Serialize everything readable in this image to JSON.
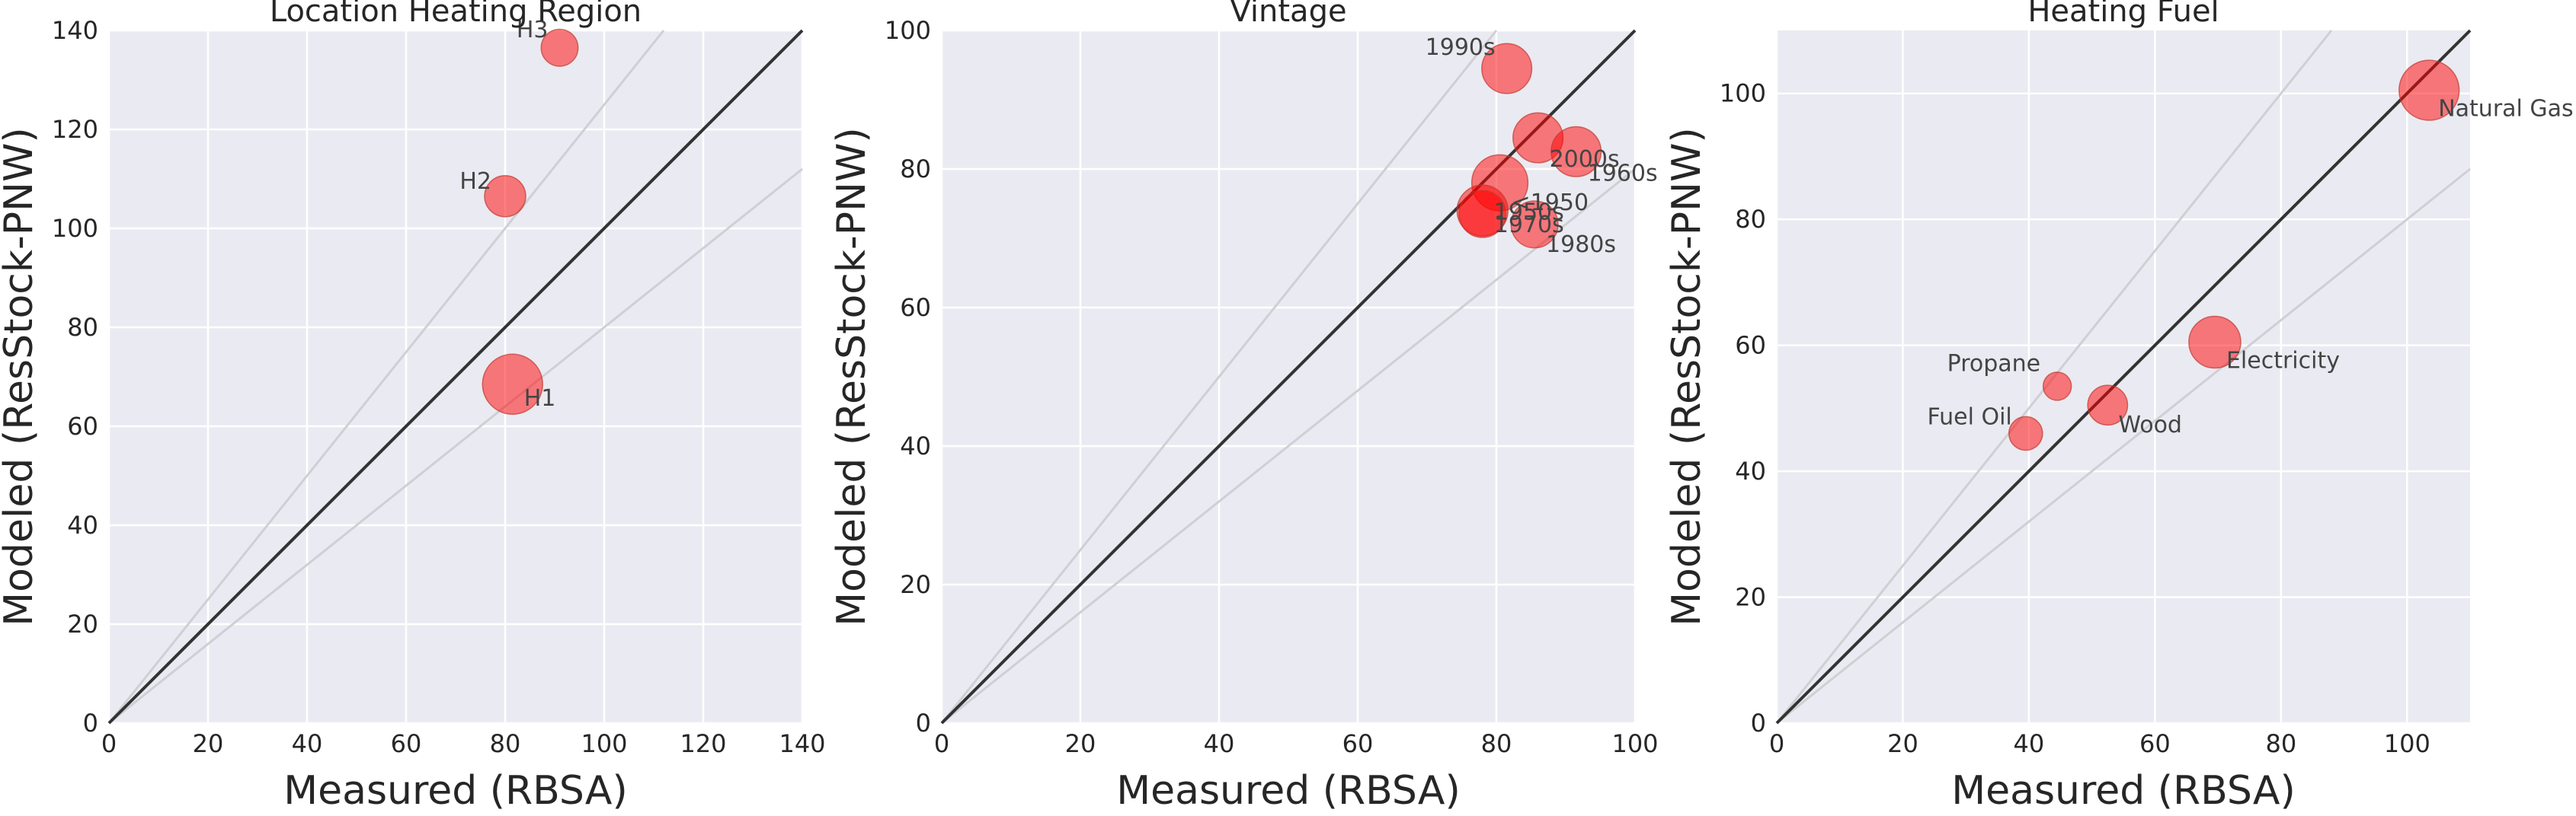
{
  "chart_data": [
    {
      "type": "scatter",
      "title": "Location Heating Region",
      "xlabel": "Measured (RBSA)",
      "ylabel": "Modeled (ResStock-PNW)",
      "xlim": [
        0,
        140
      ],
      "ylim": [
        0,
        140
      ],
      "xticks": [
        "0",
        "20",
        "40",
        "60",
        "80",
        "100",
        "120",
        "140"
      ],
      "yticks": [
        "0",
        "20",
        "40",
        "60",
        "80",
        "100",
        "120",
        "140"
      ],
      "grid": true,
      "reference_lines": {
        "identity": true,
        "bands": [
          0.8,
          1.25
        ]
      },
      "points": [
        {
          "label": "H1",
          "x": 81.5,
          "y": 68.5,
          "size": 3.0
        },
        {
          "label": "H2",
          "x": 80.0,
          "y": 106.5,
          "size": 1.0
        },
        {
          "label": "H3",
          "x": 91.0,
          "y": 136.5,
          "size": 0.7
        }
      ]
    },
    {
      "type": "scatter",
      "title": "Vintage",
      "xlabel": "Measured (RBSA)",
      "ylabel": "Modeled (ResStock-PNW)",
      "xlim": [
        0,
        100
      ],
      "ylim": [
        0,
        100
      ],
      "xticks": [
        "0",
        "20",
        "40",
        "60",
        "80",
        "100"
      ],
      "yticks": [
        "0",
        "20",
        "40",
        "60",
        "80",
        "100"
      ],
      "grid": true,
      "reference_lines": {
        "identity": true,
        "bands": [
          0.8,
          1.25
        ]
      },
      "points": [
        {
          "label": "1990s",
          "x": 81.5,
          "y": 94.5,
          "size": 1.8
        },
        {
          "label": "2000s",
          "x": 86.0,
          "y": 84.5,
          "size": 1.8
        },
        {
          "label": "1960s",
          "x": 91.5,
          "y": 82.5,
          "size": 1.8
        },
        {
          "label": "<1950",
          "x": 80.5,
          "y": 78.0,
          "size": 2.5
        },
        {
          "label": "1950s",
          "x": 78.0,
          "y": 74.0,
          "size": 1.9
        },
        {
          "label": "1970s",
          "x": 78.0,
          "y": 73.5,
          "size": 1.5
        },
        {
          "label": "1980s",
          "x": 85.5,
          "y": 72.0,
          "size": 1.5
        }
      ]
    },
    {
      "type": "scatter",
      "title": "Heating Fuel",
      "xlabel": "Measured (RBSA)",
      "ylabel": "Modeled (ResStock-PNW)",
      "xlim": [
        0,
        110
      ],
      "ylim": [
        0,
        110
      ],
      "xticks": [
        "0",
        "20",
        "40",
        "60",
        "80",
        "100"
      ],
      "yticks": [
        "0",
        "20",
        "40",
        "60",
        "80",
        "100"
      ],
      "grid": true,
      "reference_lines": {
        "identity": true,
        "bands": [
          0.8,
          1.25
        ]
      },
      "points": [
        {
          "label": "Natural Gas",
          "x": 103.5,
          "y": 100.5,
          "size": 3.0
        },
        {
          "label": "Electricity",
          "x": 69.5,
          "y": 60.5,
          "size": 2.0
        },
        {
          "label": "Wood",
          "x": 52.5,
          "y": 50.5,
          "size": 0.9
        },
        {
          "label": "Fuel Oil",
          "x": 39.5,
          "y": 46.0,
          "size": 0.5
        },
        {
          "label": "Propane",
          "x": 44.5,
          "y": 53.5,
          "size": 0.25
        }
      ]
    }
  ]
}
